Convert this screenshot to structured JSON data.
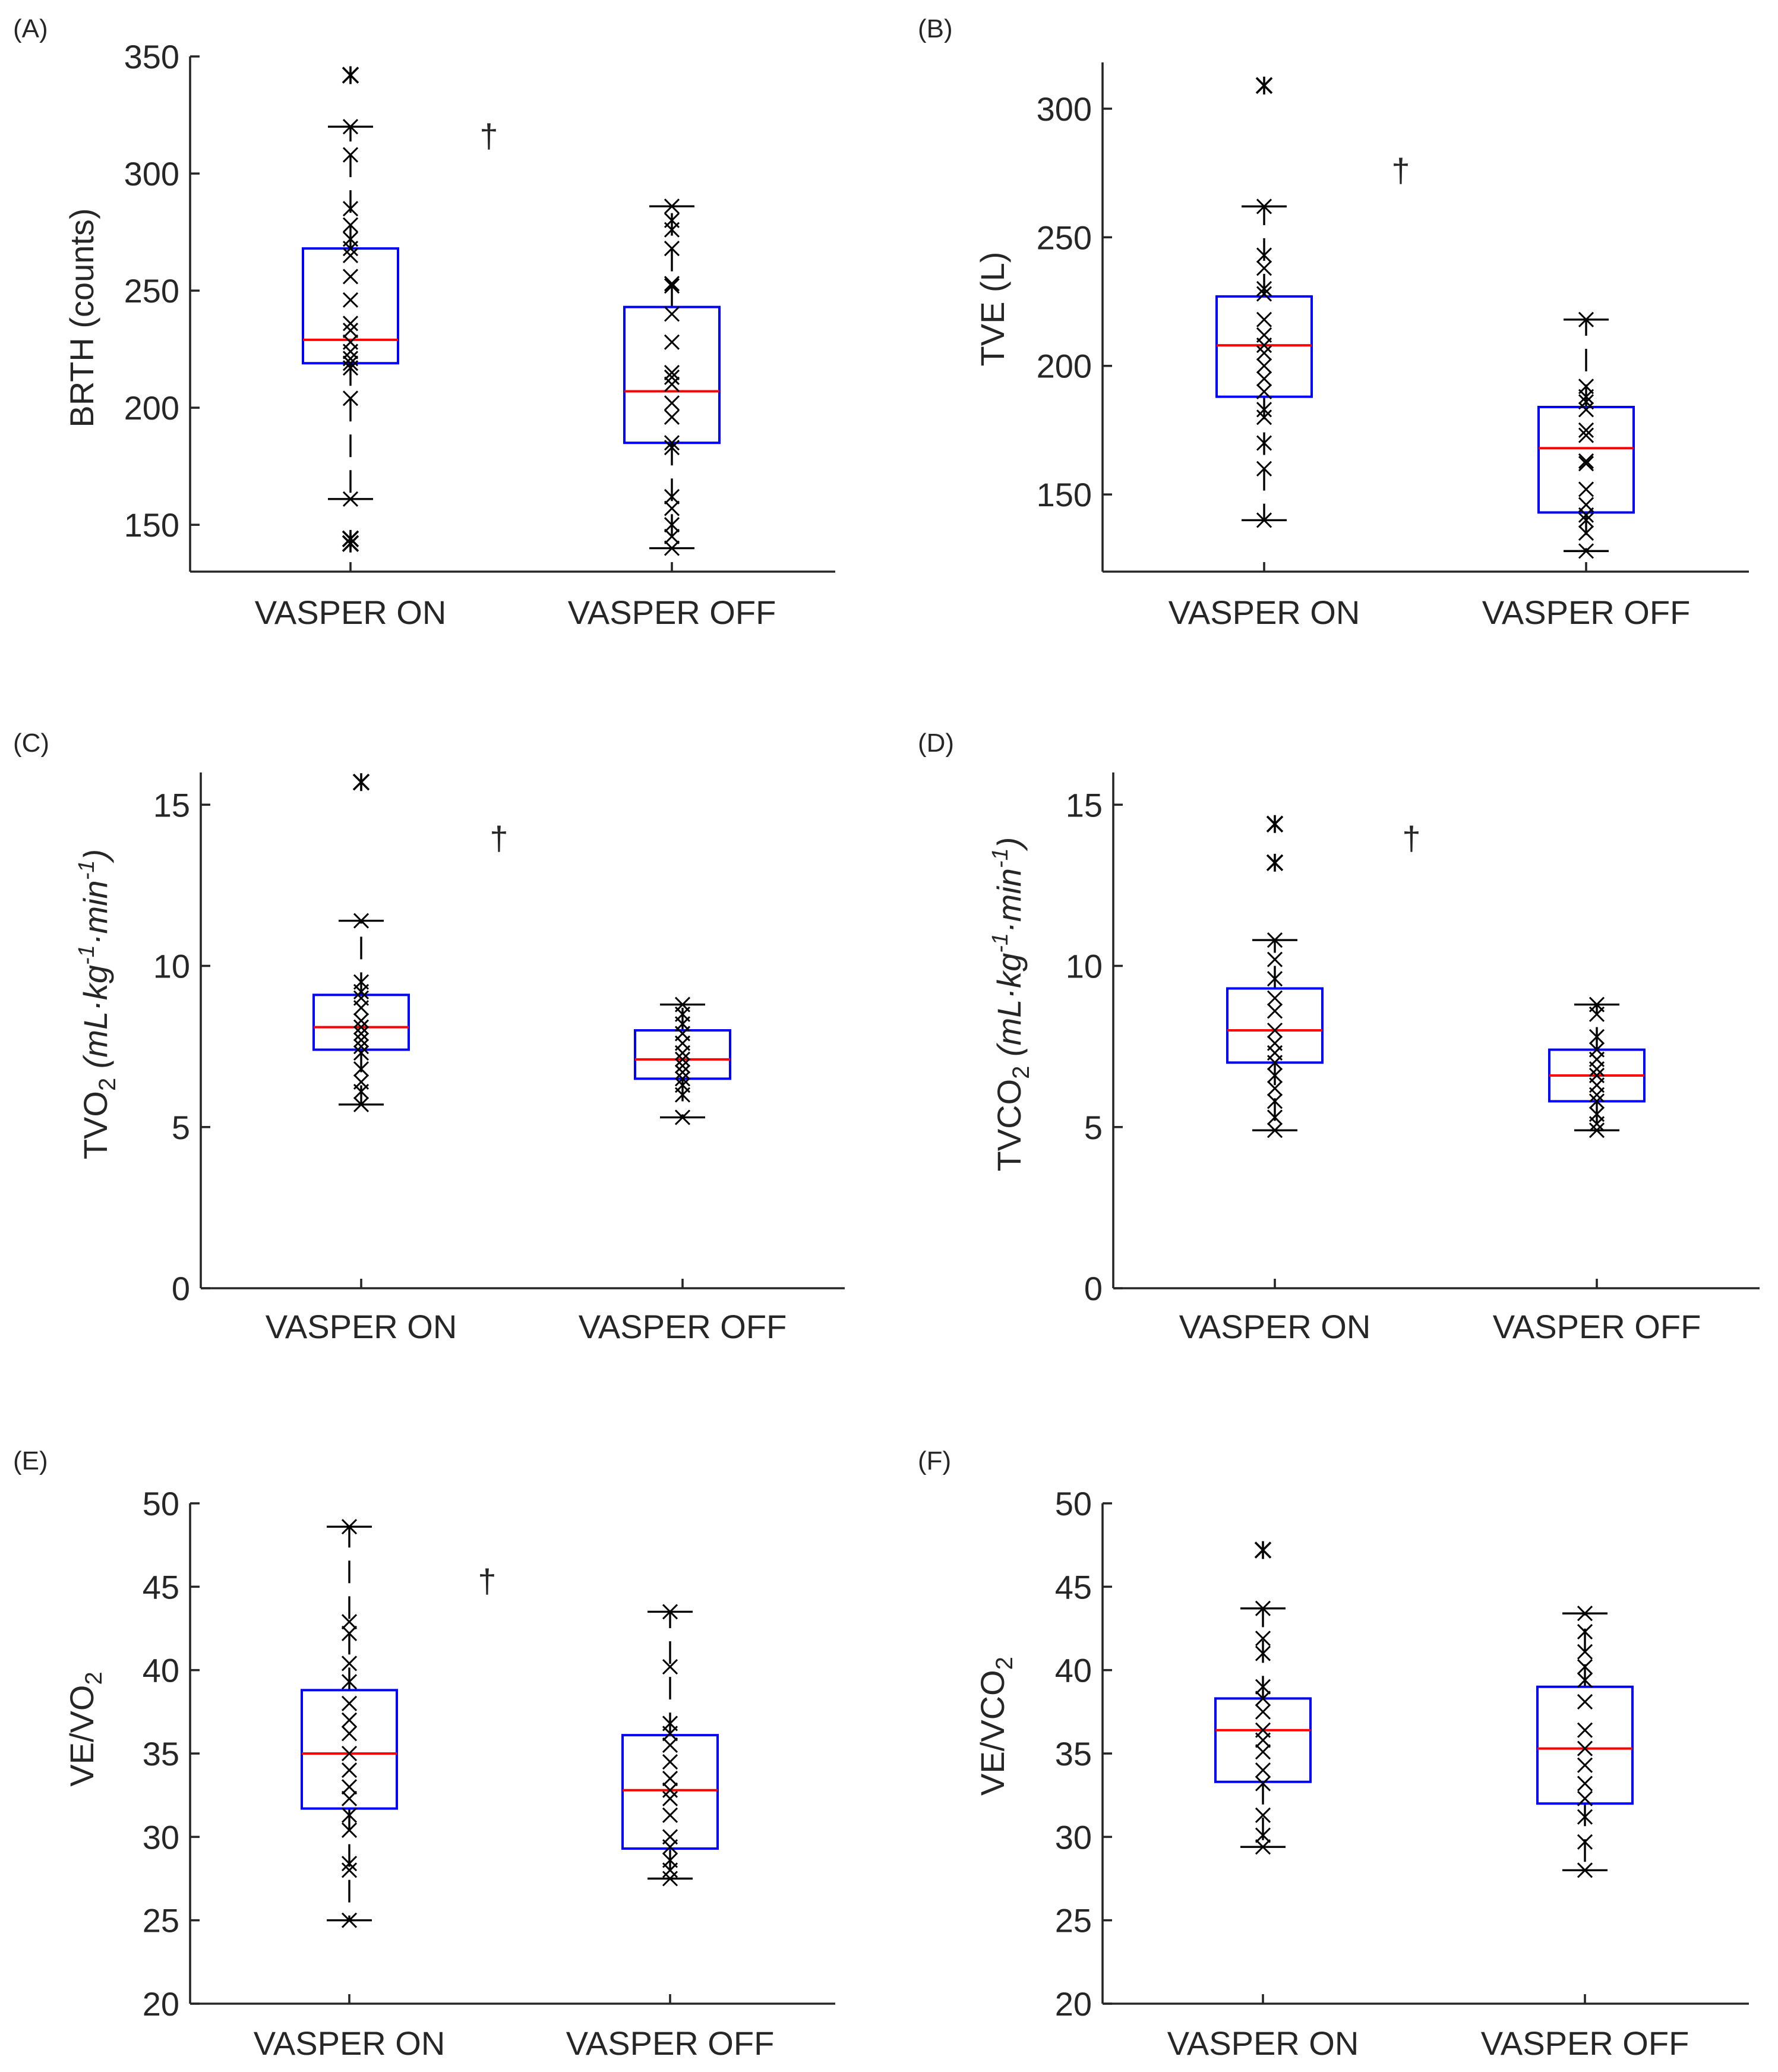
{
  "chart_data": [
    {
      "type": "box",
      "panel": "(A)",
      "ylabel": "BRTH (counts)",
      "ylim": [
        130,
        350
      ],
      "yticks": [
        150,
        200,
        250,
        300,
        350
      ],
      "categories": [
        "VASPER ON",
        "VASPER OFF"
      ],
      "significance": "†",
      "groups": [
        {
          "name": "VASPER ON",
          "q1": 219,
          "median": 229,
          "q3": 268,
          "whisker_low": 161,
          "whisker_high": 320,
          "outliers": [
            342,
            144,
            142
          ],
          "points": [
            320,
            308,
            285,
            278,
            272,
            268,
            265,
            256,
            246,
            236,
            233,
            228,
            224,
            221,
            219,
            217,
            204,
            161
          ]
        },
        {
          "name": "VASPER OFF",
          "q1": 185,
          "median": 207,
          "q3": 243,
          "whisker_low": 140,
          "whisker_high": 286,
          "outliers": [],
          "points": [
            286,
            280,
            276,
            268,
            253,
            252,
            240,
            228,
            215,
            213,
            210,
            202,
            196,
            185,
            183,
            162,
            157,
            150,
            145,
            140
          ]
        }
      ]
    },
    {
      "type": "box",
      "panel": "(B)",
      "ylabel": "TVE (L)",
      "ylim": [
        120,
        318
      ],
      "yticks": [
        150,
        200,
        250,
        300
      ],
      "categories": [
        "VASPER ON",
        "VASPER OFF"
      ],
      "significance": "†",
      "groups": [
        {
          "name": "VASPER ON",
          "q1": 188,
          "median": 208,
          "q3": 227,
          "whisker_low": 140,
          "whisker_high": 262,
          "outliers": [
            309
          ],
          "points": [
            262,
            243,
            238,
            230,
            228,
            218,
            212,
            208,
            205,
            200,
            195,
            190,
            183,
            180,
            170,
            160,
            140
          ]
        },
        {
          "name": "VASPER OFF",
          "q1": 143,
          "median": 168,
          "q3": 184,
          "whisker_low": 128,
          "whisker_high": 218,
          "outliers": [],
          "points": [
            218,
            192,
            188,
            186,
            183,
            175,
            173,
            163,
            162,
            152,
            146,
            142,
            140,
            135,
            128
          ]
        }
      ]
    },
    {
      "type": "box",
      "panel": "(C)",
      "ylabel": "TVO",
      "ylabel_sub": "2",
      "ylabel_unit": "(mL·kg",
      "ylabel_unit_sup1": "-1",
      "ylabel_unit_mid": "·min",
      "ylabel_unit_sup2": "-1",
      "ylabel_unit_end": ")",
      "ylim": [
        0,
        16
      ],
      "yticks": [
        0,
        5,
        10,
        15
      ],
      "categories": [
        "VASPER ON",
        "VASPER OFF"
      ],
      "significance": "†",
      "groups": [
        {
          "name": "VASPER ON",
          "q1": 7.4,
          "median": 8.1,
          "q3": 9.1,
          "whisker_low": 5.7,
          "whisker_high": 11.4,
          "outliers": [
            15.7
          ],
          "points": [
            11.4,
            9.5,
            9.2,
            9.0,
            8.7,
            8.3,
            8.1,
            7.9,
            7.7,
            7.5,
            7.3,
            6.8,
            6.4,
            6.1,
            5.7
          ]
        },
        {
          "name": "VASPER OFF",
          "q1": 6.5,
          "median": 7.1,
          "q3": 8.0,
          "whisker_low": 5.3,
          "whisker_high": 8.8,
          "outliers": [],
          "points": [
            8.8,
            8.5,
            8.2,
            7.9,
            7.6,
            7.3,
            7.1,
            6.9,
            6.7,
            6.5,
            6.3,
            6.0,
            5.3
          ]
        }
      ]
    },
    {
      "type": "box",
      "panel": "(D)",
      "ylabel": "TVCO",
      "ylabel_sub": "2",
      "ylabel_unit": "(mL·kg",
      "ylabel_unit_sup1": "-1",
      "ylabel_unit_mid": "·min",
      "ylabel_unit_sup2": "-1",
      "ylabel_unit_end": ")",
      "ylim": [
        0,
        16
      ],
      "yticks": [
        0,
        5,
        10,
        15
      ],
      "categories": [
        "VASPER ON",
        "VASPER OFF"
      ],
      "significance": "†",
      "groups": [
        {
          "name": "VASPER ON",
          "q1": 7.0,
          "median": 8.0,
          "q3": 9.3,
          "whisker_low": 4.9,
          "whisker_high": 10.8,
          "outliers": [
            14.4,
            13.2
          ],
          "points": [
            10.8,
            10.2,
            9.6,
            9.0,
            8.6,
            8.0,
            7.6,
            7.3,
            7.0,
            6.6,
            6.2,
            5.8,
            5.3,
            4.9
          ]
        },
        {
          "name": "VASPER OFF",
          "q1": 5.8,
          "median": 6.6,
          "q3": 7.4,
          "whisker_low": 4.9,
          "whisker_high": 8.8,
          "outliers": [],
          "points": [
            8.8,
            8.5,
            7.8,
            7.4,
            7.1,
            6.8,
            6.6,
            6.3,
            6.0,
            5.8,
            5.4,
            5.1,
            4.9
          ]
        }
      ]
    },
    {
      "type": "box",
      "panel": "(E)",
      "ylabel": "VE/VO",
      "ylabel_sub": "2",
      "ylim": [
        20,
        50
      ],
      "yticks": [
        20,
        25,
        30,
        35,
        40,
        45,
        50
      ],
      "categories": [
        "VASPER ON",
        "VASPER OFF"
      ],
      "significance": "†",
      "groups": [
        {
          "name": "VASPER ON",
          "q1": 31.7,
          "median": 35.0,
          "q3": 38.8,
          "whisker_low": 25.0,
          "whisker_high": 48.6,
          "outliers": [],
          "points": [
            48.6,
            42.9,
            42.2,
            40.4,
            39.3,
            38.0,
            37.0,
            36.2,
            35.0,
            34.0,
            33.0,
            32.3,
            31.3,
            30.4,
            28.4,
            28.0,
            25.0
          ]
        },
        {
          "name": "VASPER OFF",
          "q1": 29.3,
          "median": 32.8,
          "q3": 36.1,
          "whisker_low": 27.5,
          "whisker_high": 43.5,
          "outliers": [],
          "points": [
            43.5,
            40.2,
            36.8,
            36.2,
            35.5,
            34.5,
            33.5,
            32.8,
            32.3,
            31.3,
            30.0,
            29.4,
            28.6,
            28.0,
            27.5
          ]
        }
      ]
    },
    {
      "type": "box",
      "panel": "(F)",
      "ylabel": "VE/VCO",
      "ylabel_sub": "2",
      "ylim": [
        20,
        50
      ],
      "yticks": [
        20,
        25,
        30,
        35,
        40,
        45,
        50
      ],
      "categories": [
        "VASPER ON",
        "VASPER OFF"
      ],
      "significance": "",
      "groups": [
        {
          "name": "VASPER ON",
          "q1": 33.3,
          "median": 36.4,
          "q3": 38.3,
          "whisker_low": 29.4,
          "whisker_high": 43.7,
          "outliers": [
            47.2
          ],
          "points": [
            43.7,
            41.9,
            41.0,
            39.0,
            38.3,
            37.5,
            36.4,
            35.8,
            35.1,
            34.0,
            33.2,
            31.3,
            30.1,
            29.4
          ]
        },
        {
          "name": "VASPER OFF",
          "q1": 32.0,
          "median": 35.3,
          "q3": 39.0,
          "whisker_low": 28.0,
          "whisker_high": 43.4,
          "outliers": [],
          "points": [
            43.4,
            42.3,
            41.1,
            40.2,
            39.4,
            38.1,
            36.4,
            35.3,
            34.3,
            33.2,
            32.3,
            31.2,
            29.7,
            28.0
          ]
        }
      ]
    }
  ]
}
